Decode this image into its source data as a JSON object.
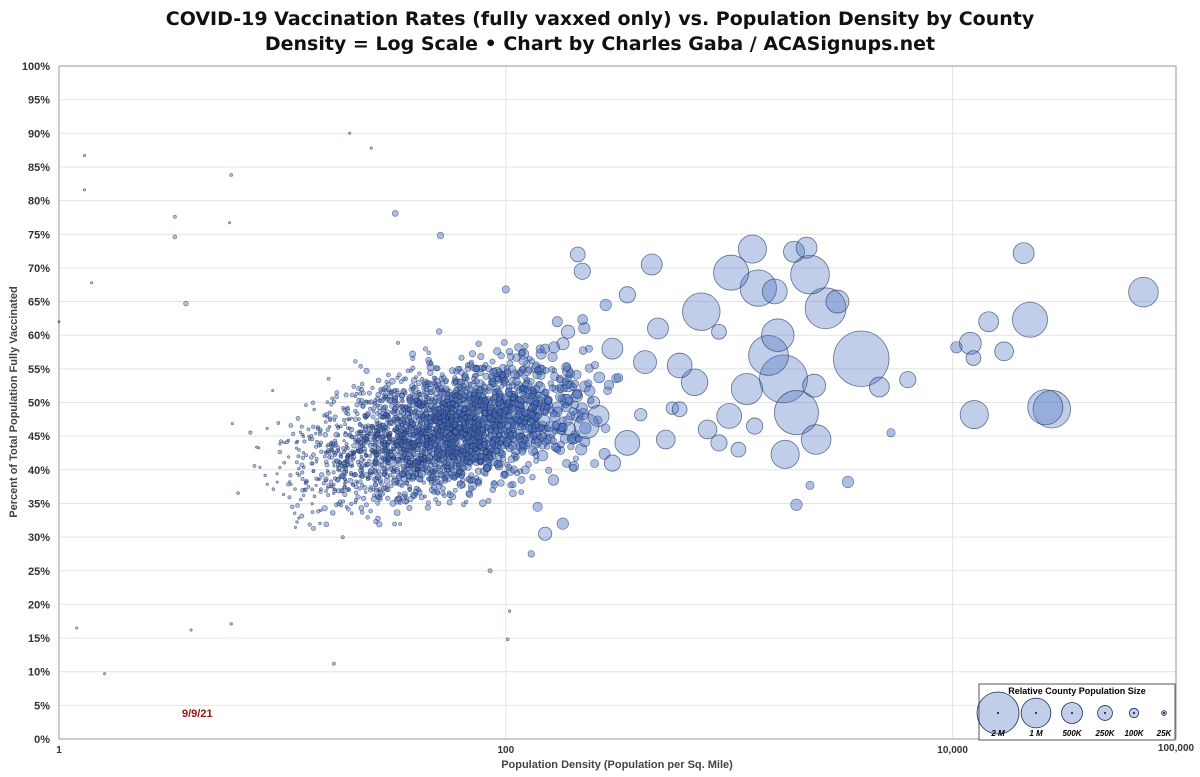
{
  "title_line1": "COVID-19 Vaccination Rates (fully vaxxed only) vs. Population Density by County",
  "title_line2": "Density = Log Scale  •  Chart by Charles Gaba / ACASignups.net",
  "chart_data": {
    "type": "scatter",
    "title": "COVID-19 Vaccination Rates (fully vaxxed only) vs. Population Density by County",
    "subtitle": "Density = Log Scale  •  Chart by Charles Gaba / ACASignups.net",
    "xlabel": "Population Density (Population per Sq. Mile)",
    "ylabel": "Percent of Total Population Fully Vaccinated",
    "x_scale": "log",
    "xlim": [
      1,
      100000
    ],
    "ylim": [
      0,
      100
    ],
    "x_ticks": [
      "1",
      "100",
      "10,000",
      "100,000"
    ],
    "y_ticks": [
      "0%",
      "5%",
      "10%",
      "15%",
      "20%",
      "25%",
      "30%",
      "35%",
      "40%",
      "45%",
      "50%",
      "55%",
      "60%",
      "65%",
      "70%",
      "75%",
      "80%",
      "85%",
      "90%",
      "95%",
      "100%"
    ],
    "grid": true,
    "bubble_color": "#4a72c4",
    "annotation": "9/9/21",
    "legend": {
      "title": "Relative County Population Size",
      "placement": "bottom-right",
      "sizes": [
        {
          "label": "2 M",
          "population": 2000000
        },
        {
          "label": "1 M",
          "population": 1000000
        },
        {
          "label": "500K",
          "population": 500000
        },
        {
          "label": "250K",
          "population": 250000
        },
        {
          "label": "100K",
          "population": 100000
        },
        {
          "label": "25K",
          "population": 25000
        }
      ]
    },
    "points": [
      {
        "x": 1.3,
        "y": 86.7,
        "pop": 3000
      },
      {
        "x": 1.3,
        "y": 81.6,
        "pop": 4000
      },
      {
        "x": 1.6,
        "y": 9.7,
        "pop": 3000
      },
      {
        "x": 1.0,
        "y": 62.0,
        "pop": 3000
      },
      {
        "x": 1.2,
        "y": 16.5,
        "pop": 3000
      },
      {
        "x": 1.4,
        "y": 67.8,
        "pop": 3000
      },
      {
        "x": 3.3,
        "y": 77.6,
        "pop": 12000
      },
      {
        "x": 3.3,
        "y": 74.6,
        "pop": 18000
      },
      {
        "x": 3.7,
        "y": 64.7,
        "pop": 25000
      },
      {
        "x": 5.9,
        "y": 83.8,
        "pop": 10000
      },
      {
        "x": 5.8,
        "y": 76.7,
        "pop": 6000
      },
      {
        "x": 5.9,
        "y": 17.1,
        "pop": 8000
      },
      {
        "x": 3.9,
        "y": 16.2,
        "pop": 6000
      },
      {
        "x": 20,
        "y": 90.0,
        "pop": 4000
      },
      {
        "x": 25,
        "y": 87.8,
        "pop": 5000
      },
      {
        "x": 17,
        "y": 11.2,
        "pop": 12000
      },
      {
        "x": 32,
        "y": 78.1,
        "pop": 40000
      },
      {
        "x": 51,
        "y": 74.8,
        "pop": 50000
      },
      {
        "x": 102,
        "y": 14.8,
        "pop": 10000
      },
      {
        "x": 1270,
        "y": 72.8,
        "pop": 900000
      },
      {
        "x": 1950,
        "y": 72.4,
        "pop": 500000
      },
      {
        "x": 1020,
        "y": 69.3,
        "pop": 1400000
      },
      {
        "x": 2220,
        "y": 73.0,
        "pop": 500000
      },
      {
        "x": 2300,
        "y": 69.0,
        "pop": 1700000
      },
      {
        "x": 2700,
        "y": 64.0,
        "pop": 1900000
      },
      {
        "x": 3050,
        "y": 65.0,
        "pop": 600000
      },
      {
        "x": 3900,
        "y": 56.5,
        "pop": 3500000
      },
      {
        "x": 2400,
        "y": 52.5,
        "pop": 600000
      },
      {
        "x": 2450,
        "y": 44.5,
        "pop": 1000000
      },
      {
        "x": 2000,
        "y": 48.5,
        "pop": 2200000
      },
      {
        "x": 1750,
        "y": 53.5,
        "pop": 2600000
      },
      {
        "x": 1500,
        "y": 57.0,
        "pop": 1800000
      },
      {
        "x": 1600,
        "y": 66.5,
        "pop": 700000
      },
      {
        "x": 1650,
        "y": 60.0,
        "pop": 1200000
      },
      {
        "x": 1350,
        "y": 67.0,
        "pop": 1500000
      },
      {
        "x": 1200,
        "y": 52.0,
        "pop": 1100000
      },
      {
        "x": 6300,
        "y": 53.4,
        "pop": 300000
      },
      {
        "x": 10400,
        "y": 58.2,
        "pop": 150000
      },
      {
        "x": 12000,
        "y": 58.8,
        "pop": 550000
      },
      {
        "x": 12400,
        "y": 56.6,
        "pop": 250000
      },
      {
        "x": 14500,
        "y": 62.0,
        "pop": 450000
      },
      {
        "x": 17000,
        "y": 57.6,
        "pop": 400000
      },
      {
        "x": 12500,
        "y": 48.2,
        "pop": 900000
      },
      {
        "x": 22200,
        "y": 62.3,
        "pop": 1400000
      },
      {
        "x": 20800,
        "y": 72.2,
        "pop": 500000
      },
      {
        "x": 26000,
        "y": 49.3,
        "pop": 1400000
      },
      {
        "x": 27800,
        "y": 49.0,
        "pop": 1600000
      },
      {
        "x": 71500,
        "y": 66.4,
        "pop": 1000000
      },
      {
        "x": 4700,
        "y": 52.3,
        "pop": 450000
      },
      {
        "x": 5300,
        "y": 45.5,
        "pop": 80000
      },
      {
        "x": 1780,
        "y": 42.3,
        "pop": 900000
      },
      {
        "x": 2300,
        "y": 37.7,
        "pop": 80000
      },
      {
        "x": 2000,
        "y": 34.8,
        "pop": 150000
      },
      {
        "x": 3400,
        "y": 38.2,
        "pop": 150000
      },
      {
        "x": 1000,
        "y": 48.0,
        "pop": 700000
      },
      {
        "x": 700,
        "y": 53.0,
        "pop": 800000
      },
      {
        "x": 750,
        "y": 63.5,
        "pop": 1600000
      },
      {
        "x": 600,
        "y": 55.5,
        "pop": 700000
      },
      {
        "x": 420,
        "y": 56.0,
        "pop": 600000
      },
      {
        "x": 300,
        "y": 58.0,
        "pop": 500000
      },
      {
        "x": 350,
        "y": 66.0,
        "pop": 300000
      },
      {
        "x": 450,
        "y": 70.5,
        "pop": 500000
      },
      {
        "x": 220,
        "y": 69.5,
        "pop": 300000
      },
      {
        "x": 210,
        "y": 72.0,
        "pop": 250000
      },
      {
        "x": 280,
        "y": 64.5,
        "pop": 150000
      },
      {
        "x": 480,
        "y": 61.0,
        "pop": 500000
      },
      {
        "x": 260,
        "y": 48.0,
        "pop": 500000
      },
      {
        "x": 230,
        "y": 46.5,
        "pop": 700000
      },
      {
        "x": 350,
        "y": 44.0,
        "pop": 700000
      },
      {
        "x": 520,
        "y": 44.5,
        "pop": 400000
      },
      {
        "x": 300,
        "y": 41.0,
        "pop": 300000
      },
      {
        "x": 900,
        "y": 44.0,
        "pop": 300000
      },
      {
        "x": 1100,
        "y": 43.0,
        "pop": 250000
      },
      {
        "x": 800,
        "y": 46.0,
        "pop": 400000
      },
      {
        "x": 1300,
        "y": 46.5,
        "pop": 300000
      },
      {
        "x": 900,
        "y": 60.5,
        "pop": 250000
      },
      {
        "x": 600,
        "y": 49.0,
        "pop": 250000
      },
      {
        "x": 150,
        "y": 30.5,
        "pop": 200000
      },
      {
        "x": 130,
        "y": 27.5,
        "pop": 50000
      },
      {
        "x": 180,
        "y": 32.0,
        "pop": 150000
      },
      {
        "x": 85,
        "y": 25.0,
        "pop": 20000
      },
      {
        "x": 104,
        "y": 19.0,
        "pop": 8000
      },
      {
        "x": 100,
        "y": 66.8,
        "pop": 60000
      },
      {
        "x": 120,
        "y": 56.2,
        "pop": 100000
      },
      {
        "x": 150,
        "y": 58.0,
        "pop": 100000
      },
      {
        "x": 190,
        "y": 60.5,
        "pop": 200000
      },
      {
        "x": 170,
        "y": 62.0,
        "pop": 120000
      }
    ]
  }
}
